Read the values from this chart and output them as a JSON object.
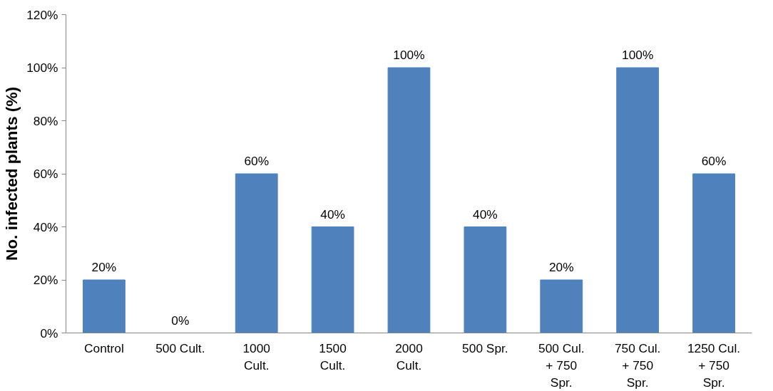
{
  "chart_data": {
    "type": "bar",
    "ylabel": "No. infected plants (%)",
    "categories": [
      "Control",
      "500 Cult.",
      "1000 Cult.",
      "1500 Cult.",
      "2000 Cult.",
      "500 Spr.",
      "500 Cul. + 750 Spr.",
      "750 Cul. + 750 Spr.",
      "1250 Cul. + 750 Spr."
    ],
    "values": [
      20,
      0,
      60,
      40,
      100,
      40,
      20,
      100,
      60
    ],
    "value_labels": [
      "20%",
      "0%",
      "60%",
      "40%",
      "100%",
      "40%",
      "20%",
      "100%",
      "60%"
    ],
    "color": "#4f81bd",
    "ylim": [
      0,
      120
    ],
    "yticks": [
      {
        "value": 0,
        "label": "0%"
      },
      {
        "value": 20,
        "label": "20%"
      },
      {
        "value": 40,
        "label": "40%"
      },
      {
        "value": 60,
        "label": "60%"
      },
      {
        "value": 80,
        "label": "80%"
      },
      {
        "value": 100,
        "label": "100%"
      },
      {
        "value": 120,
        "label": "120%"
      }
    ],
    "grid": false
  }
}
